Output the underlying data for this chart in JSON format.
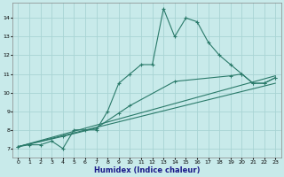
{
  "title": "",
  "xlabel": "Humidex (Indice chaleur)",
  "bg_color": "#c8eaea",
  "grid_color": "#a8d4d4",
  "line_color": "#2a7a6a",
  "xlim": [
    -0.5,
    23.5
  ],
  "ylim": [
    6.5,
    14.8
  ],
  "xticks": [
    0,
    1,
    2,
    3,
    4,
    5,
    6,
    7,
    8,
    9,
    10,
    11,
    12,
    13,
    14,
    15,
    16,
    17,
    18,
    19,
    20,
    21,
    22,
    23
  ],
  "yticks": [
    7,
    8,
    9,
    10,
    11,
    12,
    13,
    14
  ],
  "line1_x": [
    0,
    1,
    2,
    3,
    4,
    5,
    6,
    7,
    8,
    9,
    10,
    11,
    12,
    13,
    14,
    15,
    16,
    17,
    18,
    19,
    20,
    21,
    22,
    23
  ],
  "line1_y": [
    7.1,
    7.2,
    7.2,
    7.4,
    7.0,
    8.0,
    8.0,
    8.0,
    9.0,
    10.5,
    11.0,
    11.5,
    11.5,
    14.5,
    13.0,
    14.0,
    13.8,
    12.7,
    12.0,
    11.5,
    11.0,
    10.5,
    10.5,
    10.8
  ],
  "line2_x": [
    0,
    4,
    7,
    9,
    10,
    14,
    19,
    20,
    21,
    22,
    23
  ],
  "line2_y": [
    7.1,
    7.65,
    8.1,
    8.9,
    9.3,
    10.6,
    10.9,
    11.0,
    10.5,
    10.5,
    10.8
  ],
  "line3_x": [
    0,
    23
  ],
  "line3_y": [
    7.1,
    10.9
  ],
  "line4_x": [
    0,
    23
  ],
  "line4_y": [
    7.1,
    10.5
  ]
}
